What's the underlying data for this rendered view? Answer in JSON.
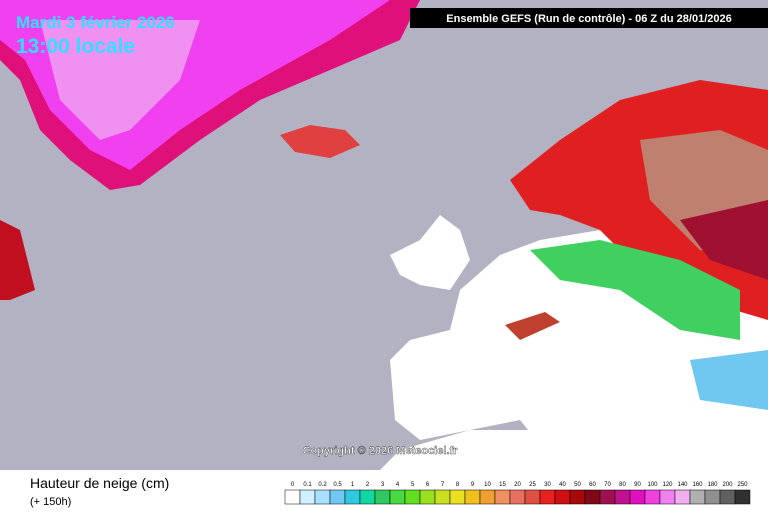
{
  "header": {
    "date": "Mardi 3 février 2026",
    "time": "13:00 locale",
    "run": "Ensemble GEFS  (Run de contrôle)  -  06 Z du 28/01/2026"
  },
  "copyright": "Copyright © 2026 Meteociel.fr",
  "legend": {
    "title": "Hauteur de neige (cm)",
    "subtitle": "(+ 150h)",
    "labels": [
      0,
      0.1,
      0.2,
      0.5,
      1,
      2,
      3,
      4,
      5,
      6,
      7,
      8,
      9,
      10,
      15,
      20,
      25,
      30,
      40,
      50,
      60,
      70,
      80,
      90,
      100,
      120,
      140,
      160,
      180,
      200,
      250
    ],
    "colors": [
      "#ffffff",
      "#d0f0ff",
      "#a8e0ff",
      "#70c8f0",
      "#30c8e0",
      "#10d8a0",
      "#30c860",
      "#48d840",
      "#60e020",
      "#98e020",
      "#c8e020",
      "#e8e020",
      "#f0c020",
      "#f0a030",
      "#f09060",
      "#e87060",
      "#e05040",
      "#e82020",
      "#d01010",
      "#a80808",
      "#800818",
      "#a01050",
      "#c01090",
      "#e010c0",
      "#f040e0",
      "#f080f0",
      "#f0b0f0",
      "#b0b0b0",
      "#909090",
      "#606060",
      "#303030"
    ]
  }
}
